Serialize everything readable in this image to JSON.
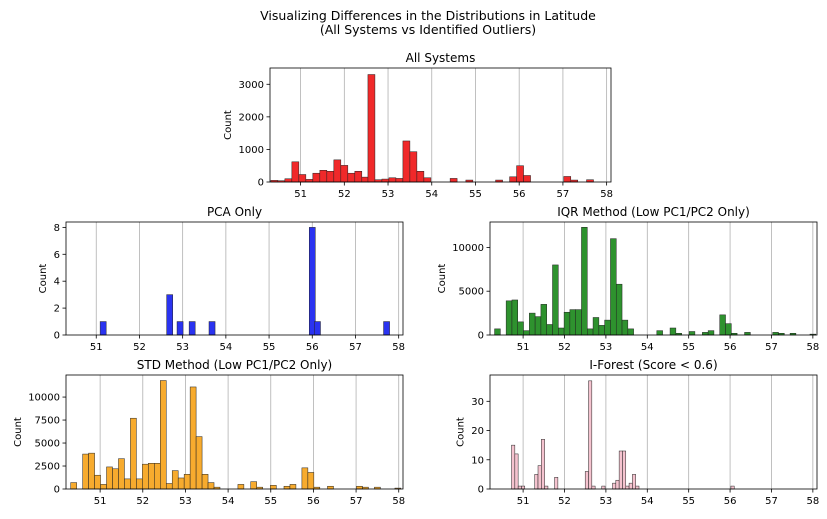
{
  "figure": {
    "suptitle_line1": "Visualizing Differences in the Distributions in Latitude",
    "suptitle_line2": "(All Systems vs Identified Outliers)"
  },
  "chart_data": [
    {
      "type": "histogram",
      "title": "All Systems",
      "xlabel": "",
      "ylabel": "Count",
      "xlim": [
        50.3,
        58.1
      ],
      "ylim": [
        0,
        3500
      ],
      "xticks": [
        51,
        52,
        53,
        54,
        55,
        56,
        57,
        58
      ],
      "yticks": [
        0,
        1000,
        2000,
        3000
      ],
      "grid": "x",
      "color": "#f0292a",
      "edgecolor": "#222222",
      "bin_width": 0.16,
      "bins": [
        {
          "x": 50.4,
          "count": 50
        },
        {
          "x": 50.56,
          "count": 40
        },
        {
          "x": 50.72,
          "count": 100
        },
        {
          "x": 50.88,
          "count": 620
        },
        {
          "x": 51.04,
          "count": 230
        },
        {
          "x": 51.2,
          "count": 80
        },
        {
          "x": 51.36,
          "count": 270
        },
        {
          "x": 51.52,
          "count": 360
        },
        {
          "x": 51.68,
          "count": 330
        },
        {
          "x": 51.84,
          "count": 680
        },
        {
          "x": 52.0,
          "count": 510
        },
        {
          "x": 52.16,
          "count": 270
        },
        {
          "x": 52.32,
          "count": 330
        },
        {
          "x": 52.48,
          "count": 150
        },
        {
          "x": 52.62,
          "count": 3300
        },
        {
          "x": 52.78,
          "count": 70
        },
        {
          "x": 52.94,
          "count": 90
        },
        {
          "x": 53.1,
          "count": 130
        },
        {
          "x": 53.26,
          "count": 110
        },
        {
          "x": 53.42,
          "count": 1260
        },
        {
          "x": 53.58,
          "count": 930
        },
        {
          "x": 53.74,
          "count": 330
        },
        {
          "x": 53.9,
          "count": 130
        },
        {
          "x": 54.5,
          "count": 110
        },
        {
          "x": 54.86,
          "count": 60
        },
        {
          "x": 55.54,
          "count": 60
        },
        {
          "x": 55.86,
          "count": 160
        },
        {
          "x": 56.02,
          "count": 500
        },
        {
          "x": 56.18,
          "count": 200
        },
        {
          "x": 57.1,
          "count": 170
        },
        {
          "x": 57.26,
          "count": 60
        },
        {
          "x": 57.62,
          "count": 70
        }
      ]
    },
    {
      "type": "histogram",
      "title": "PCA Only",
      "xlabel": "",
      "ylabel": "Count",
      "xlim": [
        50.3,
        58.1
      ],
      "ylim": [
        0,
        8.4
      ],
      "xticks": [
        51,
        52,
        53,
        54,
        55,
        56,
        57,
        58
      ],
      "yticks": [
        0,
        2,
        4,
        6,
        8
      ],
      "grid": "x",
      "color": "#2a33f0",
      "edgecolor": "#222222",
      "bin_width": 0.14,
      "bins": [
        {
          "x": 51.16,
          "count": 1
        },
        {
          "x": 52.7,
          "count": 3
        },
        {
          "x": 52.94,
          "count": 1
        },
        {
          "x": 53.22,
          "count": 1
        },
        {
          "x": 53.68,
          "count": 1
        },
        {
          "x": 56.0,
          "count": 8
        },
        {
          "x": 56.12,
          "count": 1
        },
        {
          "x": 57.72,
          "count": 1
        }
      ]
    },
    {
      "type": "histogram",
      "title": "IQR Method (Low PC1/PC2 Only)",
      "xlabel": "",
      "ylabel": "Count",
      "xlim": [
        50.2,
        58.1
      ],
      "ylim": [
        0,
        12900
      ],
      "xticks": [
        51,
        52,
        53,
        54,
        55,
        56,
        57,
        58
      ],
      "yticks": [
        0,
        5000,
        10000
      ],
      "grid": "x",
      "color": "#2e922e",
      "edgecolor": "#222222",
      "bin_width": 0.14,
      "bins": [
        {
          "x": 50.38,
          "count": 700
        },
        {
          "x": 50.52,
          "count": 0
        },
        {
          "x": 50.66,
          "count": 3900
        },
        {
          "x": 50.8,
          "count": 4000
        },
        {
          "x": 50.94,
          "count": 1500
        },
        {
          "x": 51.08,
          "count": 500
        },
        {
          "x": 51.22,
          "count": 2500
        },
        {
          "x": 51.36,
          "count": 2100
        },
        {
          "x": 51.5,
          "count": 3500
        },
        {
          "x": 51.64,
          "count": 1200
        },
        {
          "x": 51.78,
          "count": 8000
        },
        {
          "x": 51.92,
          "count": 800
        },
        {
          "x": 52.06,
          "count": 2600
        },
        {
          "x": 52.2,
          "count": 2900
        },
        {
          "x": 52.34,
          "count": 2900
        },
        {
          "x": 52.48,
          "count": 12300
        },
        {
          "x": 52.62,
          "count": 700
        },
        {
          "x": 52.76,
          "count": 2000
        },
        {
          "x": 52.9,
          "count": 1100
        },
        {
          "x": 53.04,
          "count": 1700
        },
        {
          "x": 53.18,
          "count": 11000
        },
        {
          "x": 53.32,
          "count": 5800
        },
        {
          "x": 53.46,
          "count": 1700
        },
        {
          "x": 53.6,
          "count": 700
        },
        {
          "x": 54.3,
          "count": 500
        },
        {
          "x": 54.62,
          "count": 800
        },
        {
          "x": 54.76,
          "count": 200
        },
        {
          "x": 55.08,
          "count": 400
        },
        {
          "x": 55.4,
          "count": 300
        },
        {
          "x": 55.54,
          "count": 500
        },
        {
          "x": 55.82,
          "count": 2300
        },
        {
          "x": 55.96,
          "count": 1300
        },
        {
          "x": 56.1,
          "count": 200
        },
        {
          "x": 56.42,
          "count": 300
        },
        {
          "x": 57.1,
          "count": 300
        },
        {
          "x": 57.24,
          "count": 200
        },
        {
          "x": 57.52,
          "count": 200
        },
        {
          "x": 58.0,
          "count": 100
        }
      ]
    },
    {
      "type": "histogram",
      "title": "STD Method (Low PC1/PC2 Only)",
      "xlabel": "",
      "ylabel": "Count",
      "xlim": [
        50.2,
        58.1
      ],
      "ylim": [
        0,
        12400
      ],
      "xticks": [
        51,
        52,
        53,
        54,
        55,
        56,
        57,
        58
      ],
      "yticks": [
        0,
        2500,
        5000,
        7500,
        10000
      ],
      "grid": "x",
      "color": "#f7ab2e",
      "edgecolor": "#222222",
      "bin_width": 0.14,
      "bins": [
        {
          "x": 50.38,
          "count": 700
        },
        {
          "x": 50.66,
          "count": 3800
        },
        {
          "x": 50.8,
          "count": 3900
        },
        {
          "x": 50.94,
          "count": 1500
        },
        {
          "x": 51.08,
          "count": 500
        },
        {
          "x": 51.22,
          "count": 2400
        },
        {
          "x": 51.36,
          "count": 2200
        },
        {
          "x": 51.5,
          "count": 3300
        },
        {
          "x": 51.64,
          "count": 1100
        },
        {
          "x": 51.78,
          "count": 7700
        },
        {
          "x": 51.92,
          "count": 1100
        },
        {
          "x": 52.06,
          "count": 2700
        },
        {
          "x": 52.2,
          "count": 2800
        },
        {
          "x": 52.34,
          "count": 2800
        },
        {
          "x": 52.48,
          "count": 11800
        },
        {
          "x": 52.62,
          "count": 600
        },
        {
          "x": 52.76,
          "count": 2000
        },
        {
          "x": 52.9,
          "count": 1200
        },
        {
          "x": 53.04,
          "count": 1600
        },
        {
          "x": 53.18,
          "count": 11100
        },
        {
          "x": 53.32,
          "count": 5700
        },
        {
          "x": 53.46,
          "count": 1600
        },
        {
          "x": 53.6,
          "count": 700
        },
        {
          "x": 53.74,
          "count": 200
        },
        {
          "x": 54.3,
          "count": 500
        },
        {
          "x": 54.6,
          "count": 800
        },
        {
          "x": 54.74,
          "count": 200
        },
        {
          "x": 55.06,
          "count": 400
        },
        {
          "x": 55.38,
          "count": 300
        },
        {
          "x": 55.52,
          "count": 500
        },
        {
          "x": 55.8,
          "count": 2300
        },
        {
          "x": 55.94,
          "count": 1800
        },
        {
          "x": 56.08,
          "count": 200
        },
        {
          "x": 56.4,
          "count": 300
        },
        {
          "x": 57.08,
          "count": 300
        },
        {
          "x": 57.22,
          "count": 200
        },
        {
          "x": 57.5,
          "count": 200
        },
        {
          "x": 57.98,
          "count": 100
        }
      ]
    },
    {
      "type": "histogram",
      "title": "I-Forest (Score < 0.6)",
      "xlabel": "",
      "ylabel": "Count",
      "xlim": [
        50.2,
        58.1
      ],
      "ylim": [
        0,
        39
      ],
      "xticks": [
        51,
        52,
        53,
        54,
        55,
        56,
        57,
        58
      ],
      "yticks": [
        0,
        10,
        20,
        30
      ],
      "grid": "x",
      "color": "#f5c3cf",
      "edgecolor": "#222222",
      "bin_width": 0.08,
      "bins": [
        {
          "x": 50.76,
          "count": 15
        },
        {
          "x": 50.84,
          "count": 12
        },
        {
          "x": 50.92,
          "count": 1
        },
        {
          "x": 51.0,
          "count": 1
        },
        {
          "x": 51.32,
          "count": 5
        },
        {
          "x": 51.4,
          "count": 8
        },
        {
          "x": 51.48,
          "count": 17
        },
        {
          "x": 51.56,
          "count": 1
        },
        {
          "x": 51.8,
          "count": 4
        },
        {
          "x": 52.54,
          "count": 6
        },
        {
          "x": 52.62,
          "count": 37
        },
        {
          "x": 52.7,
          "count": 1
        },
        {
          "x": 52.94,
          "count": 1
        },
        {
          "x": 53.2,
          "count": 2
        },
        {
          "x": 53.28,
          "count": 3
        },
        {
          "x": 53.36,
          "count": 13
        },
        {
          "x": 53.44,
          "count": 13
        },
        {
          "x": 53.52,
          "count": 1
        },
        {
          "x": 53.6,
          "count": 2
        },
        {
          "x": 53.68,
          "count": 5
        },
        {
          "x": 53.76,
          "count": 1
        },
        {
          "x": 56.06,
          "count": 1
        }
      ]
    }
  ]
}
